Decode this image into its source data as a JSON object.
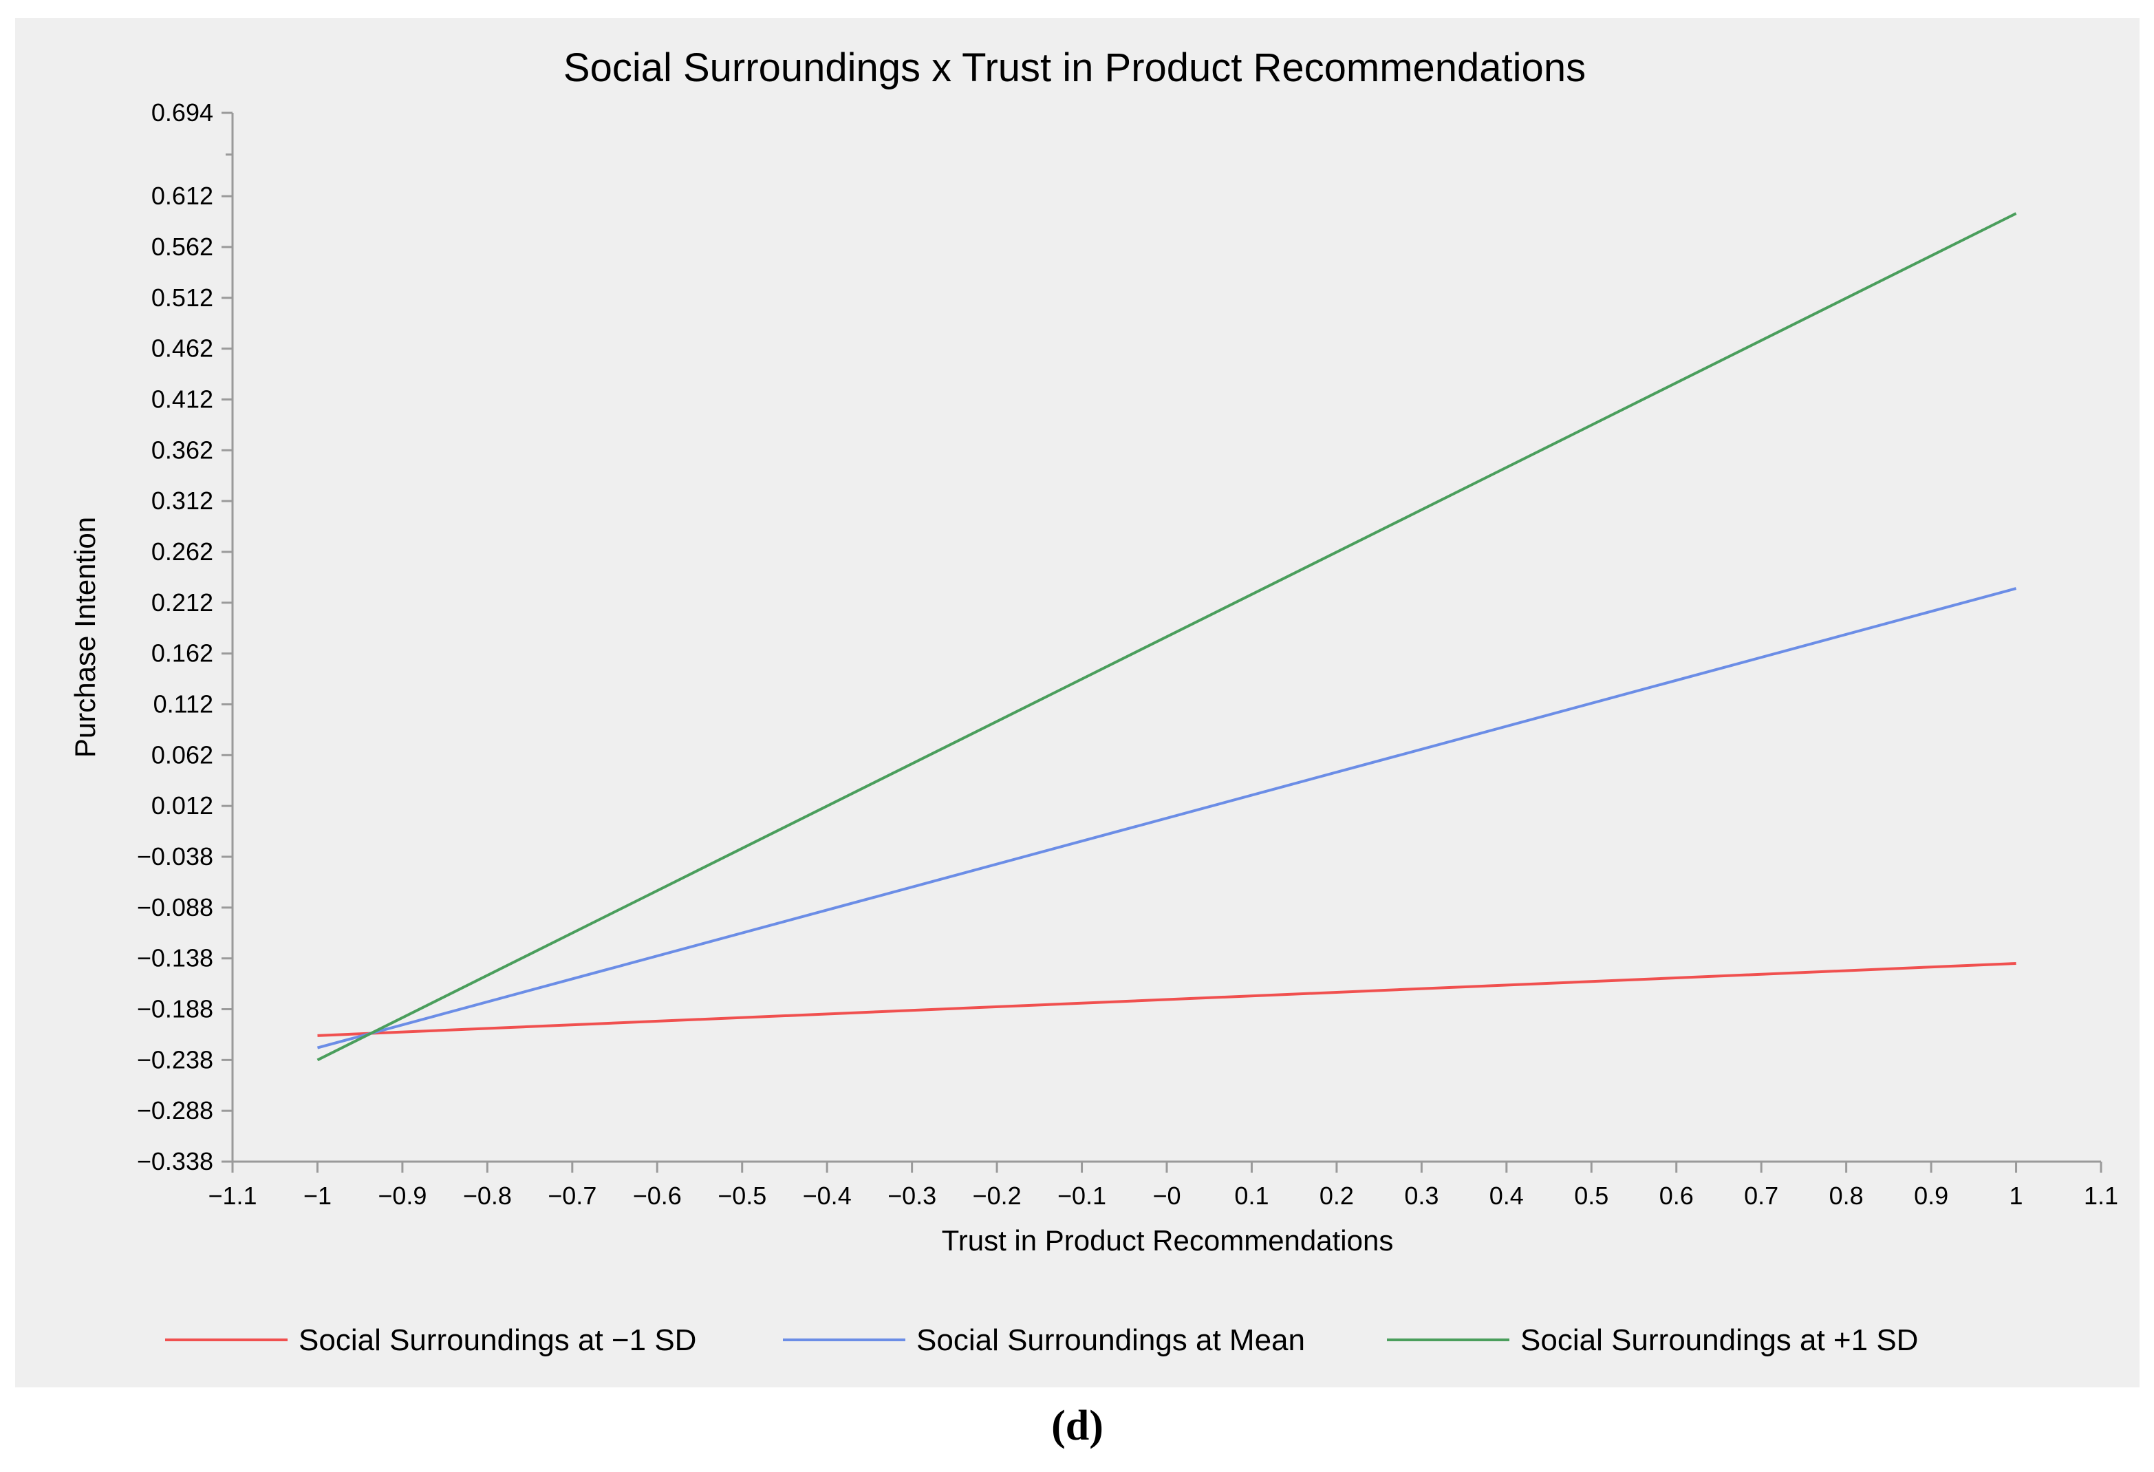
{
  "chart_data": {
    "type": "line",
    "title": "Social Surroundings x Trust in Product Recommendations",
    "xlabel": "Trust in Product Recommendations",
    "ylabel": "Purchase Intention",
    "xlim": [
      -1.1,
      1.1
    ],
    "ylim": [
      -0.338,
      0.694
    ],
    "x_ticks": [
      -1.1,
      -1,
      -0.9,
      -0.8,
      -0.7,
      -0.6,
      -0.5,
      -0.4,
      -0.3,
      -0.2,
      -0.1,
      0,
      0.1,
      0.2,
      0.3,
      0.4,
      0.5,
      0.6,
      0.7,
      0.8,
      0.9,
      1,
      1.1
    ],
    "x_tick_labels": [
      "−1.1",
      "−1",
      "−0.9",
      "−0.8",
      "−0.7",
      "−0.6",
      "−0.5",
      "−0.4",
      "−0.3",
      "−0.2",
      "−0.1",
      "−0",
      "0.1",
      "0.2",
      "0.3",
      "0.4",
      "0.5",
      "0.6",
      "0.7",
      "0.8",
      "0.9",
      "1",
      "1.1"
    ],
    "y_ticks": [
      0.694,
      0.612,
      0.562,
      0.512,
      0.462,
      0.412,
      0.362,
      0.312,
      0.262,
      0.212,
      0.162,
      0.112,
      0.062,
      0.012,
      -0.038,
      -0.088,
      -0.138,
      -0.188,
      -0.238,
      -0.288,
      -0.338
    ],
    "y_tick_labels": [
      "0.694",
      "0.612",
      "0.562",
      "0.512",
      "0.462",
      "0.412",
      "0.362",
      "0.312",
      "0.262",
      "0.212",
      "0.162",
      "0.112",
      "0.062",
      "0.012",
      "−0.038",
      "−0.088",
      "−0.138",
      "−0.188",
      "−0.238",
      "−0.288",
      "−0.338"
    ],
    "series": [
      {
        "name": "Social Surroundings at  −1 SD",
        "color": "#f0504f",
        "x": [
          -1,
          1
        ],
        "y": [
          -0.214,
          -0.143
        ]
      },
      {
        "name": "Social Surroundings at Mean",
        "color": "#6b8de6",
        "x": [
          -1,
          1
        ],
        "y": [
          -0.226,
          0.226
        ]
      },
      {
        "name": "Social Surroundings at +1 SD",
        "color": "#4a9e5c",
        "x": [
          -1,
          1
        ],
        "y": [
          -0.238,
          0.595
        ]
      }
    ],
    "grid": false,
    "legend_position": "bottom"
  },
  "panel_label": "(d)"
}
